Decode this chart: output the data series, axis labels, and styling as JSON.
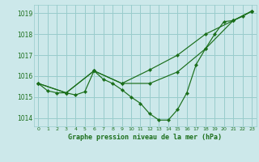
{
  "title": "Graphe pression niveau de la mer (hPa)",
  "bg_color": "#cce8ea",
  "grid_color": "#99cccc",
  "line_color": "#1a6e1a",
  "xlim": [
    -0.5,
    23.5
  ],
  "ylim": [
    1013.6,
    1019.4
  ],
  "yticks": [
    1014,
    1015,
    1016,
    1017,
    1018,
    1019
  ],
  "xticks": [
    0,
    1,
    2,
    3,
    4,
    5,
    6,
    7,
    8,
    9,
    10,
    11,
    12,
    13,
    14,
    15,
    16,
    17,
    18,
    19,
    20,
    21,
    22,
    23
  ],
  "series": [
    {
      "x": [
        0,
        1,
        2,
        3,
        4,
        5,
        6,
        7,
        8,
        9,
        10,
        11,
        12,
        13,
        14,
        15,
        16,
        17,
        18,
        19,
        20,
        21,
        22,
        23
      ],
      "y": [
        1015.65,
        1015.3,
        1015.2,
        1015.2,
        1015.1,
        1015.25,
        1016.25,
        1015.85,
        1015.65,
        1015.35,
        1015.0,
        1014.7,
        1014.2,
        1013.9,
        1013.9,
        1014.4,
        1015.2,
        1016.55,
        1017.3,
        1018.0,
        1018.6,
        1018.65,
        1018.85,
        1019.1
      ]
    },
    {
      "x": [
        0,
        3,
        6,
        9,
        12,
        15,
        18,
        21,
        23
      ],
      "y": [
        1015.65,
        1015.2,
        1016.25,
        1015.65,
        1016.3,
        1017.0,
        1018.0,
        1018.65,
        1019.1
      ]
    },
    {
      "x": [
        0,
        3,
        6,
        9,
        12,
        15,
        18,
        21,
        23
      ],
      "y": [
        1015.65,
        1015.2,
        1016.25,
        1015.65,
        1015.65,
        1016.2,
        1017.3,
        1018.65,
        1019.1
      ]
    }
  ]
}
